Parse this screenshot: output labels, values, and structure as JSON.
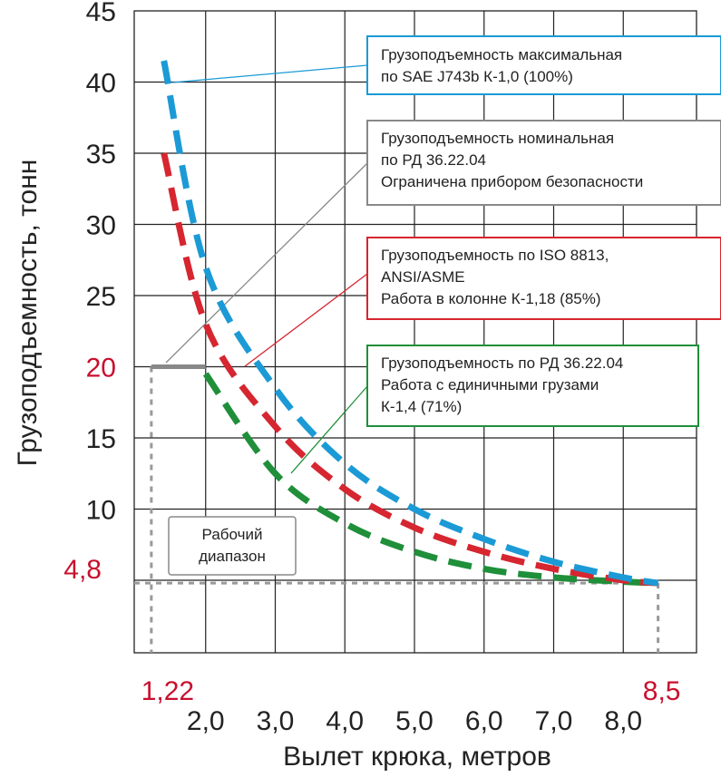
{
  "chart_data": {
    "type": "line",
    "xlabel": "Вылет крюка, метров",
    "ylabel": "Грузоподъемность, тонн",
    "xlim": [
      1.0,
      9.0
    ],
    "ylim": [
      0,
      45
    ],
    "x_ticks": [
      {
        "value": 2.0,
        "label": "2,0"
      },
      {
        "value": 3.0,
        "label": "3,0"
      },
      {
        "value": 4.0,
        "label": "4,0"
      },
      {
        "value": 5.0,
        "label": "5,0"
      },
      {
        "value": 6.0,
        "label": "6,0"
      },
      {
        "value": 7.0,
        "label": "7,0"
      },
      {
        "value": 8.0,
        "label": "8,0"
      }
    ],
    "y_ticks": [
      {
        "value": 10,
        "label": "10"
      },
      {
        "value": 15,
        "label": "15"
      },
      {
        "value": 25,
        "label": "25"
      },
      {
        "value": 30,
        "label": "30"
      },
      {
        "value": 35,
        "label": "35"
      },
      {
        "value": 40,
        "label": "40"
      },
      {
        "value": 45,
        "label": "45"
      }
    ],
    "highlight_ticks": {
      "x": [
        {
          "value": 1.22,
          "label": "1,22"
        },
        {
          "value": 8.5,
          "label": "8,5"
        }
      ],
      "y": [
        {
          "value": 20,
          "label": "20"
        },
        {
          "value": 4.8,
          "label": "4,8"
        }
      ]
    },
    "grid": true,
    "series": [
      {
        "key": "max",
        "color": "#1b9ad6",
        "x": [
          1.4,
          2.0,
          3.0,
          4.0,
          5.0,
          6.0,
          7.0,
          8.0,
          8.5
        ],
        "y": [
          41.5,
          27.0,
          18.5,
          13.2,
          10.0,
          7.9,
          6.3,
          5.2,
          4.8
        ]
      },
      {
        "key": "iso",
        "color": "#d62630",
        "x": [
          1.4,
          2.0,
          3.0,
          4.0,
          5.0,
          6.0,
          7.0,
          8.0,
          8.5
        ],
        "y": [
          35.0,
          23.0,
          15.8,
          11.4,
          8.7,
          7.0,
          5.8,
          5.0,
          4.8
        ]
      },
      {
        "key": "rd",
        "color": "#1f8f3a",
        "x": [
          2.0,
          3.0,
          4.0,
          5.0,
          6.0,
          7.0,
          8.0,
          8.5
        ],
        "y": [
          19.5,
          12.5,
          9.0,
          7.0,
          5.8,
          5.2,
          4.9,
          4.8
        ]
      }
    ],
    "nominal_line": {
      "x": [
        1.22,
        2.0
      ],
      "y": [
        20,
        20
      ],
      "color": "#888888"
    },
    "annotations": {
      "max": [
        "Грузоподъемность максимальная",
        "по SAE J743b К-1,0 (100%)"
      ],
      "nominal": [
        "Грузоподъемность номинальная",
        "по РД 36.22.04",
        "Ограничена прибором безопасности"
      ],
      "iso": [
        "Грузоподъемность по ISO 8813,",
        "ANSI/ASME",
        "Работа в колонне К-1,18 (85%)"
      ],
      "rd": [
        "Грузоподъемность по РД 36.22.04",
        "Работа с единичными грузами",
        "К-1,4 (71%)"
      ],
      "range": [
        "Рабочий",
        "диапазон"
      ]
    },
    "colors": {
      "blue": "#1b9ad6",
      "gray": "#888888",
      "red": "#d62630",
      "green": "#1f8f3a",
      "highlight": "#c8102e"
    }
  }
}
